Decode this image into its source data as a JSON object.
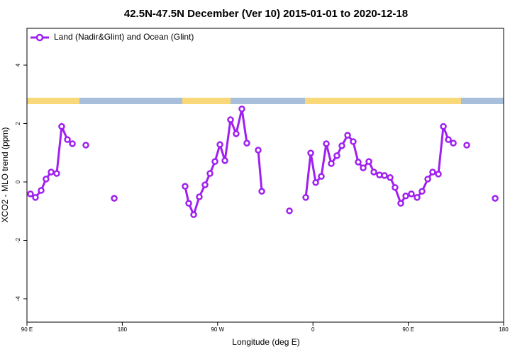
{
  "chart_data": {
    "type": "line",
    "title": "42.5N-47.5N December (Ver 10)   2015-01-01 to 2020-12-18",
    "x_label": "Longitude (deg E)",
    "y_label": "XCO2 - MLO trend (ppm)",
    "xlim": [
      90,
      540
    ],
    "ylim": [
      -4.8,
      5.26
    ],
    "xticks": [
      {
        "value": 90,
        "label": "90 E"
      },
      {
        "value": 180,
        "label": "180"
      },
      {
        "value": 270,
        "label": "90 W"
      },
      {
        "value": 360,
        "label": "0"
      },
      {
        "value": 450,
        "label": "90 E"
      },
      {
        "value": 540,
        "label": "180"
      }
    ],
    "yticks": [
      -4,
      -2,
      0,
      2,
      4
    ],
    "legend": "top-left",
    "x": [
      93.3,
      98,
      103.4,
      108,
      112.8,
      118.1,
      122.8,
      128.2,
      132.9,
      null,
      145.6,
      null,
      172.4,
      null,
      239.3,
      242.7,
      247.4,
      252.7,
      258.1,
      262.8,
      267.5,
      272.2,
      276.9,
      282.2,
      287.5,
      292.9,
      297.6,
      null,
      308.3,
      311.7,
      null,
      337.8,
      null,
      353.2,
      357.9,
      362.6,
      367.9,
      372.6,
      377.3,
      382.6,
      387.3,
      392.7,
      398,
      402.7,
      407.4,
      412.8,
      417.5,
      422.8,
      427.5,
      432.9,
      437.5,
      442.9,
      447.6,
      452.9,
      458.3,
      463,
      468.4,
      473,
      478.4,
      483.1,
      487.8,
      492.5,
      null,
      505.2,
      null,
      532
    ],
    "series": [
      {
        "name": "Land (Nadir&Glint) and Ocean (Glint)",
        "color": "#a020f0",
        "values": [
          -0.41,
          -0.53,
          -0.29,
          0.1,
          0.34,
          0.29,
          1.9,
          1.45,
          1.31,
          null,
          1.26,
          null,
          -0.56,
          null,
          -0.15,
          -0.73,
          -1.12,
          -0.51,
          -0.1,
          0.29,
          0.7,
          1.28,
          0.73,
          2.13,
          1.65,
          2.5,
          1.33,
          null,
          1.09,
          -0.32,
          null,
          -0.99,
          null,
          -0.53,
          0.99,
          -0.02,
          0.19,
          1.31,
          0.63,
          0.9,
          1.24,
          1.6,
          1.38,
          0.68,
          0.48,
          0.7,
          0.34,
          0.24,
          0.22,
          0.15,
          -0.19,
          -0.73,
          -0.48,
          -0.41,
          -0.53,
          -0.32,
          0.1,
          0.34,
          0.27,
          1.9,
          1.45,
          1.33,
          null,
          1.26,
          null,
          -0.56
        ]
      }
    ]
  }
}
